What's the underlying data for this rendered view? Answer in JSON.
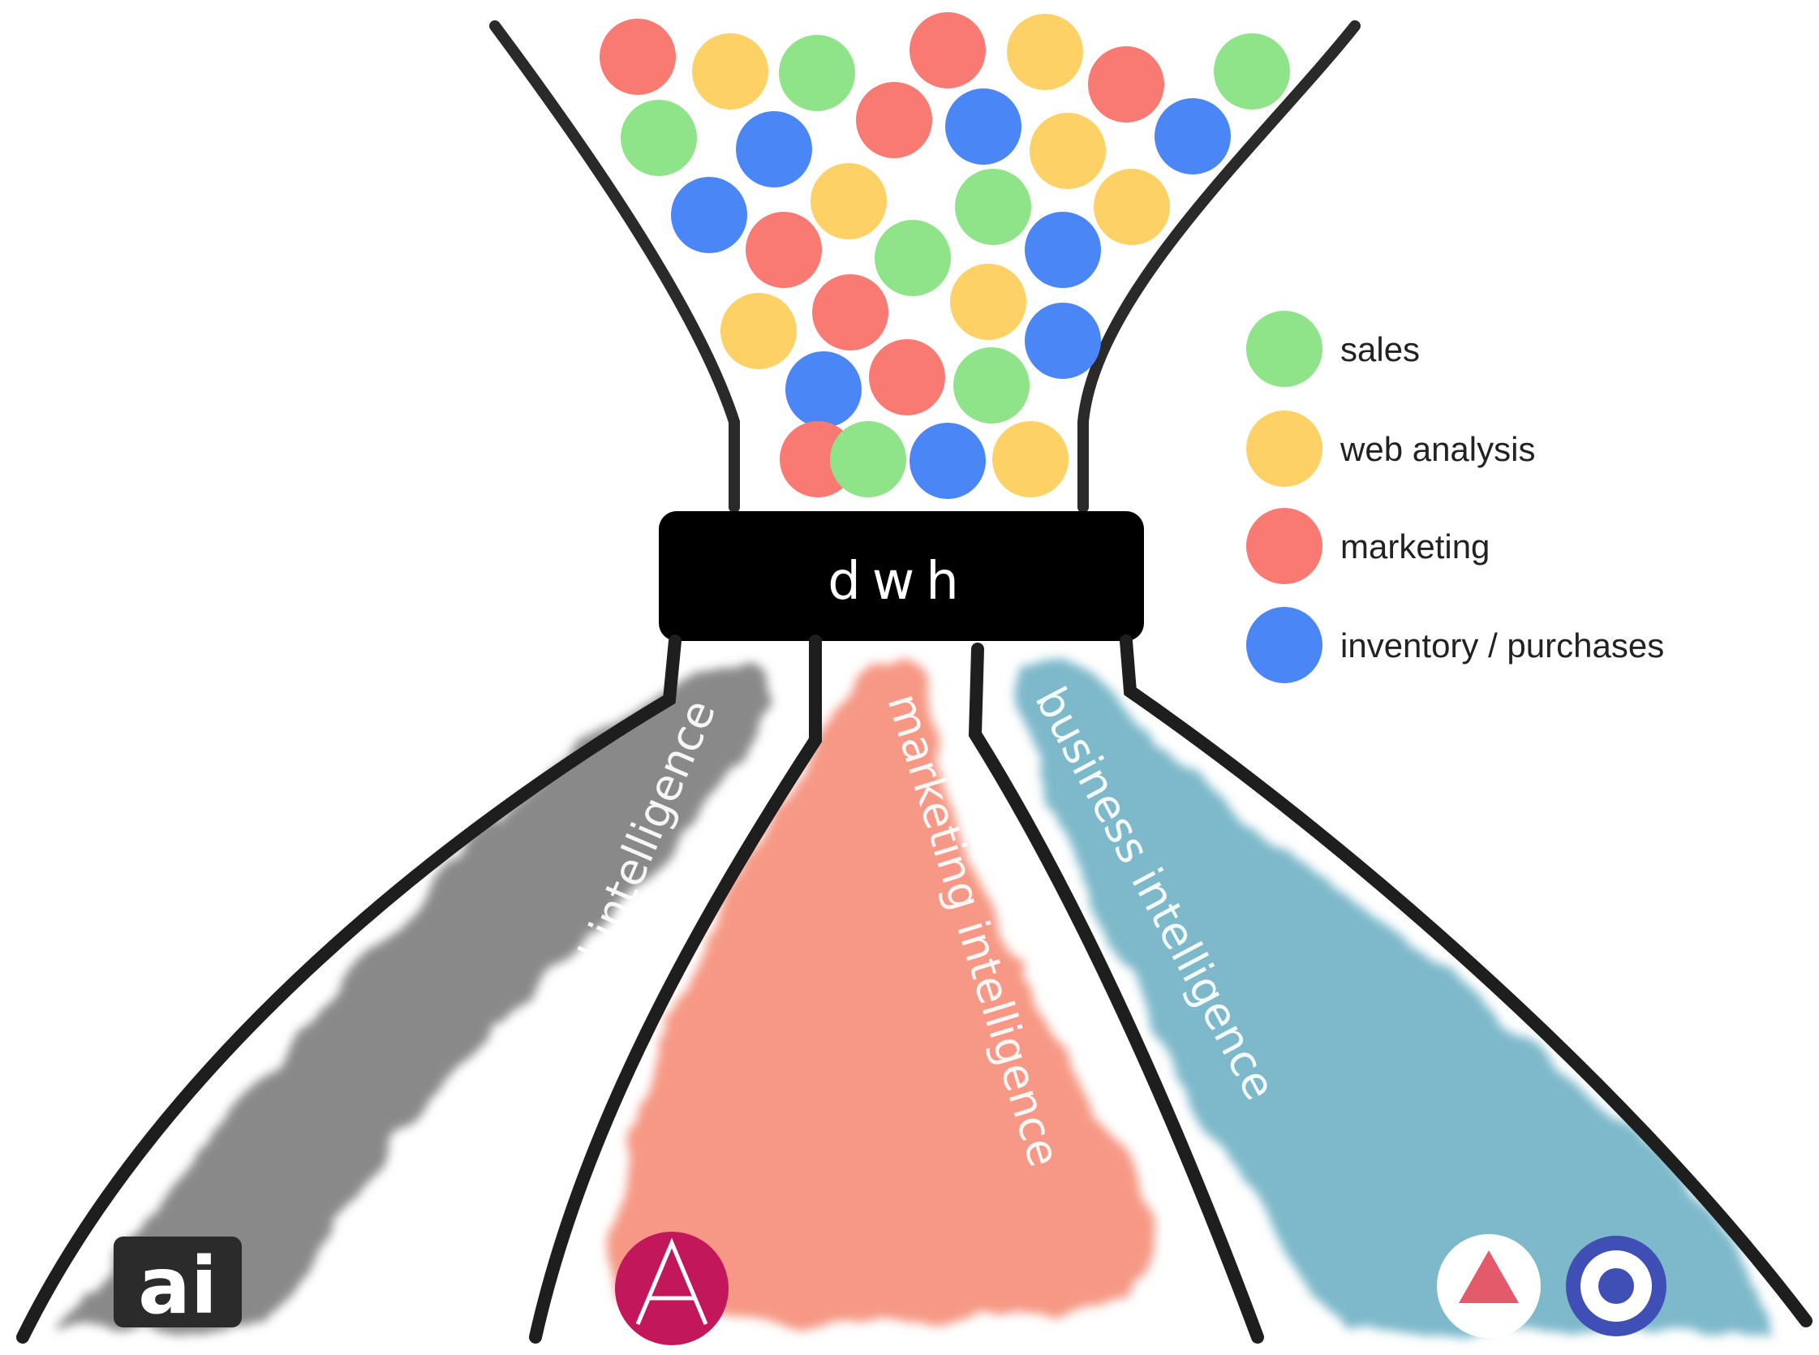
{
  "hub": {
    "label": "dwh"
  },
  "legend": [
    {
      "label": "sales",
      "color": "#8FE388"
    },
    {
      "label": "web analysis",
      "color": "#FDD166"
    },
    {
      "label": "marketing",
      "color": "#F97A72"
    },
    {
      "label": "inventory / purchases",
      "color": "#4A86F5"
    }
  ],
  "streams": [
    {
      "label": "artificial intelligence",
      "color": "#7a7a7a",
      "logo": "ai-logo-icon",
      "logo_text": "ai"
    },
    {
      "label": "marketing intelligence",
      "color": "#F58A74",
      "logo": "a-circle-logo-icon"
    },
    {
      "label": "business intelligence",
      "color": "#6BAFC3",
      "logo": "triangle-and-target-logo-icons"
    }
  ],
  "funnel_balls": [
    "red",
    "yellow",
    "green",
    "red",
    "yellow",
    "red",
    "green",
    "green",
    "blue",
    "red",
    "blue",
    "yellow",
    "blue",
    "blue",
    "yellow",
    "green",
    "yellow",
    "red",
    "green",
    "blue",
    "yellow",
    "red",
    "yellow",
    "blue",
    "blue",
    "red",
    "green",
    "red",
    "green",
    "blue",
    "yellow"
  ]
}
